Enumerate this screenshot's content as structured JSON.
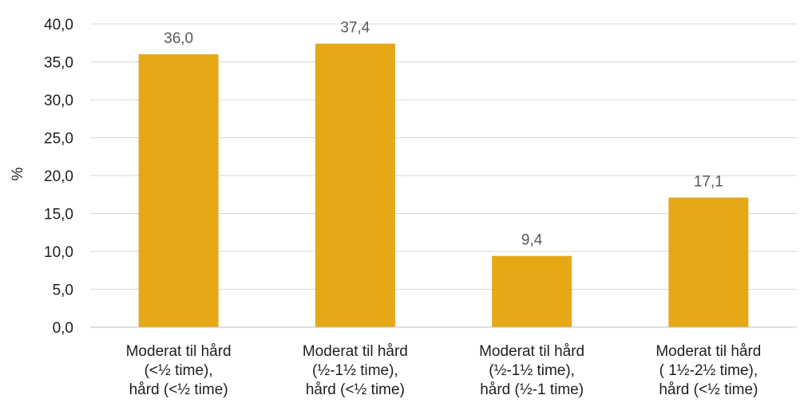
{
  "chart_data": {
    "type": "bar",
    "ylabel": "%",
    "xlabel": "",
    "ylim": [
      0,
      40
    ],
    "ytick_step": 5,
    "yticks": [
      "0,0",
      "5,0",
      "10,0",
      "15,0",
      "20,0",
      "25,0",
      "30,0",
      "35,0",
      "40,0"
    ],
    "grid": true,
    "categories": [
      [
        "Moderat til hård",
        "(<½ time),",
        "hård (<½ time)"
      ],
      [
        "Moderat til hård",
        "(½-1½ time),",
        "hård (<½ time)"
      ],
      [
        "Moderat til hård",
        "(½-1½ time),",
        "hård (½-1 time)"
      ],
      [
        "Moderat til hård",
        "( 1½-2½ time),",
        "hård (<½ time)"
      ]
    ],
    "values": [
      36.0,
      37.4,
      9.4,
      17.1
    ],
    "value_labels": [
      "36,0",
      "37,4",
      "9,4",
      "17,1"
    ],
    "colors": {
      "bar": "#E6A817",
      "grid": "#d9d9d9",
      "axis": "#bfbfbf"
    }
  }
}
